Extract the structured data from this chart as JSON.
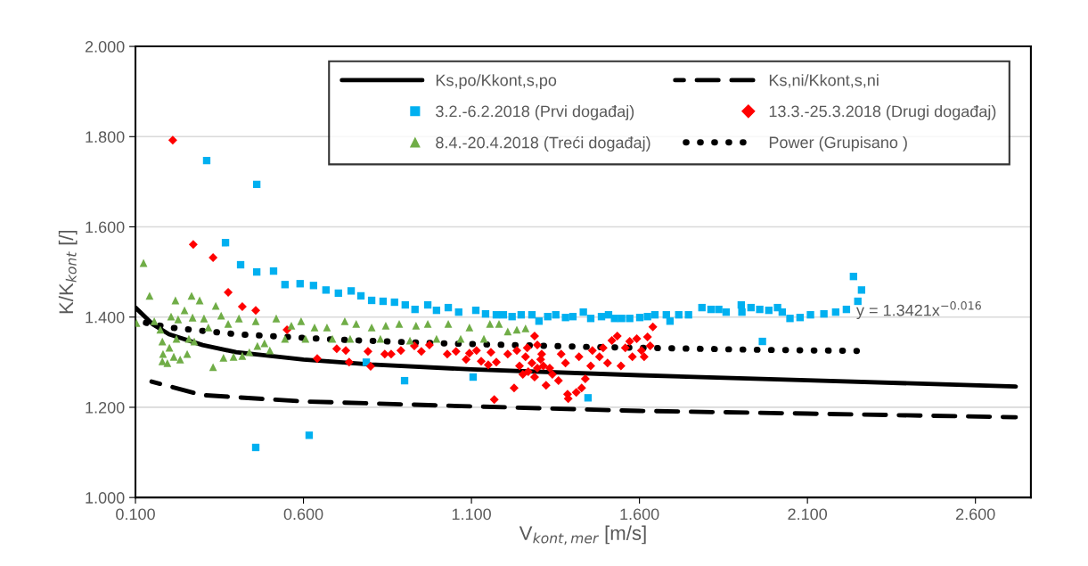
{
  "chart_data": {
    "type": "scatter",
    "xlabel": "V$_{kont,mer}$ [m/s]",
    "ylabel": "K/K$_{kont}$ [/]",
    "annotations": [
      "y = 1.3421x$^{−0.016}$"
    ],
    "xlim": [
      0.1,
      2.765
    ],
    "xticks": [
      {
        "value": 0.1,
        "label": "0.100"
      },
      {
        "value": 0.6,
        "label": "0.600"
      },
      {
        "value": 1.1,
        "label": "1.100"
      },
      {
        "value": 1.6,
        "label": "1.600"
      },
      {
        "value": 2.1,
        "label": "2.100"
      },
      {
        "value": 2.6,
        "label": "2.600"
      }
    ],
    "ylim": [
      1.0,
      2.0
    ],
    "yticks": [
      {
        "value": 1.0,
        "label": "1.000"
      },
      {
        "value": 1.2,
        "label": "1.200"
      },
      {
        "value": 1.4,
        "label": "1.400"
      },
      {
        "value": 1.6,
        "label": "1.600"
      },
      {
        "value": 1.8,
        "label": "1.800"
      },
      {
        "value": 2.0,
        "label": "2.000"
      }
    ],
    "grid": "y",
    "legend": "top right",
    "series": [
      {
        "name": "Ks,po/Kkont,s,po",
        "type": "line",
        "color": "#000000",
        "line_style": "solid",
        "marker": "none",
        "x": [
          0.1,
          0.15,
          0.2,
          0.3,
          0.4,
          0.6,
          0.8,
          1.1,
          1.6,
          2.1,
          2.72
        ],
        "values": [
          1.421,
          1.385,
          1.362,
          1.338,
          1.322,
          1.306,
          1.295,
          1.284,
          1.271,
          1.26,
          1.246
        ]
      },
      {
        "name": "Ks,ni/Kkont,s,ni",
        "type": "line",
        "color": "#000000",
        "line_style": "dashed",
        "marker": "none",
        "x": [
          0.148,
          0.3,
          0.6,
          1.1,
          1.6,
          2.1,
          2.72
        ],
        "values": [
          1.257,
          1.227,
          1.213,
          1.202,
          1.192,
          1.186,
          1.178
        ]
      },
      {
        "name": "3.2.-6.2.2018 (Prvi događaj)",
        "color": "#00b0f0",
        "marker": "square",
        "x": [
          0.312,
          0.461,
          0.368,
          0.413,
          0.461,
          0.511,
          0.545,
          0.59,
          0.63,
          0.667,
          0.704,
          0.742,
          0.771,
          0.803,
          0.837,
          0.871,
          0.903,
          0.932,
          0.97,
          0.996,
          1.031,
          1.062,
          1.113,
          1.142,
          1.174,
          1.195,
          1.221,
          1.248,
          1.28,
          1.301,
          1.327,
          1.351,
          1.38,
          1.402,
          1.433,
          1.455,
          1.487,
          1.508,
          1.526,
          1.547,
          1.571,
          1.601,
          1.624,
          1.646,
          1.68,
          1.691,
          1.717,
          1.746,
          1.786,
          1.813,
          1.836,
          1.858,
          1.903,
          1.905,
          1.932,
          1.958,
          1.985,
          2.011,
          2.025,
          2.048,
          2.078,
          2.109,
          2.149,
          2.184,
          2.216,
          2.237,
          2.25,
          2.261,
          1.447,
          1.966,
          0.787,
          0.901,
          1.105,
          0.458,
          0.617
        ],
        "values": [
          1.747,
          1.694,
          1.565,
          1.516,
          1.5,
          1.502,
          1.472,
          1.474,
          1.47,
          1.46,
          1.453,
          1.458,
          1.447,
          1.437,
          1.435,
          1.433,
          1.427,
          1.417,
          1.427,
          1.415,
          1.421,
          1.411,
          1.415,
          1.407,
          1.405,
          1.405,
          1.401,
          1.405,
          1.405,
          1.391,
          1.401,
          1.405,
          1.399,
          1.401,
          1.411,
          1.397,
          1.401,
          1.405,
          1.397,
          1.397,
          1.397,
          1.399,
          1.401,
          1.405,
          1.405,
          1.391,
          1.405,
          1.405,
          1.421,
          1.417,
          1.417,
          1.411,
          1.427,
          1.411,
          1.421,
          1.417,
          1.415,
          1.421,
          1.411,
          1.397,
          1.399,
          1.405,
          1.407,
          1.411,
          1.417,
          1.49,
          1.435,
          1.46,
          1.221,
          1.346,
          1.3,
          1.259,
          1.267,
          1.111,
          1.138
        ]
      },
      {
        "name": "13.3.-25.3.2018 (Drugi događaj)",
        "color": "#ff0000",
        "marker": "diamond",
        "x": [
          0.211,
          0.272,
          0.331,
          0.376,
          0.418,
          0.458,
          0.551,
          0.641,
          0.699,
          0.726,
          0.736,
          0.792,
          0.8,
          0.842,
          0.861,
          0.89,
          0.93,
          0.951,
          0.975,
          1.028,
          1.054,
          1.084,
          1.094,
          1.115,
          1.129,
          1.15,
          1.158,
          1.168,
          1.174,
          1.208,
          1.227,
          1.322,
          1.359,
          1.367,
          1.38,
          1.386,
          1.388,
          1.412,
          1.42,
          1.428,
          1.439,
          1.455,
          1.46,
          1.481,
          1.492,
          1.505,
          1.518,
          1.534,
          1.545,
          1.558,
          1.571,
          1.579,
          1.592,
          1.606,
          1.614,
          1.624,
          1.632,
          1.64,
          1.288,
          1.296,
          1.261,
          1.243,
          1.28,
          1.306,
          1.269,
          1.296,
          1.314,
          1.253,
          1.288,
          1.333,
          1.341,
          1.235,
          1.266,
          1.309
        ],
        "values": [
          1.792,
          1.561,
          1.532,
          1.455,
          1.423,
          1.415,
          1.372,
          1.308,
          1.33,
          1.326,
          1.3,
          1.324,
          1.291,
          1.318,
          1.318,
          1.326,
          1.336,
          1.324,
          1.338,
          1.318,
          1.324,
          1.306,
          1.32,
          1.326,
          1.302,
          1.294,
          1.322,
          1.217,
          1.3,
          1.318,
          1.243,
          1.249,
          1.259,
          1.318,
          1.298,
          1.229,
          1.219,
          1.233,
          1.312,
          1.243,
          1.263,
          1.292,
          1.326,
          1.312,
          1.332,
          1.298,
          1.348,
          1.358,
          1.292,
          1.332,
          1.346,
          1.312,
          1.352,
          1.326,
          1.312,
          1.356,
          1.336,
          1.378,
          1.358,
          1.338,
          1.312,
          1.292,
          1.298,
          1.306,
          1.279,
          1.287,
          1.292,
          1.273,
          1.267,
          1.287,
          1.273,
          1.326,
          1.332,
          1.318
        ]
      },
      {
        "name": "8.4.-20.4.2018 (Treći događaj)",
        "color": "#70ad47",
        "marker": "triangle",
        "x": [
          0.103,
          0.124,
          0.142,
          0.156,
          0.174,
          0.18,
          0.182,
          0.18,
          0.195,
          0.201,
          0.206,
          0.219,
          0.227,
          0.222,
          0.214,
          0.233,
          0.246,
          0.254,
          0.259,
          0.267,
          0.27,
          0.275,
          0.291,
          0.304,
          0.317,
          0.331,
          0.339,
          0.355,
          0.362,
          0.376,
          0.392,
          0.408,
          0.418,
          0.439,
          0.458,
          0.463,
          0.484,
          0.5,
          0.519,
          0.545,
          0.564,
          0.593,
          0.606,
          0.633,
          0.67,
          0.686,
          0.723,
          0.739,
          0.757,
          0.803,
          0.829,
          0.845,
          0.885,
          0.917,
          0.935,
          0.97,
          0.996,
          1.031,
          1.068,
          1.094,
          1.137,
          1.155,
          1.182,
          1.208,
          1.235,
          1.261
        ],
        "values": [
          1.387,
          1.52,
          1.447,
          1.391,
          1.372,
          1.346,
          1.318,
          1.302,
          1.298,
          1.332,
          1.401,
          1.437,
          1.395,
          1.352,
          1.312,
          1.306,
          1.415,
          1.318,
          1.352,
          1.447,
          1.399,
          1.346,
          1.437,
          1.397,
          1.377,
          1.289,
          1.425,
          1.403,
          1.31,
          1.385,
          1.312,
          1.397,
          1.314,
          1.322,
          1.391,
          1.336,
          1.342,
          1.326,
          1.397,
          1.352,
          1.381,
          1.391,
          1.352,
          1.377,
          1.377,
          1.352,
          1.391,
          1.352,
          1.385,
          1.377,
          1.352,
          1.381,
          1.385,
          1.348,
          1.381,
          1.385,
          1.352,
          1.385,
          1.352,
          1.377,
          1.352,
          1.385,
          1.385,
          1.368,
          1.372,
          1.375
        ]
      },
      {
        "name": "Power (Grupisano )",
        "type": "line",
        "color": "#000000",
        "line_style": "dotted",
        "marker": "none",
        "x": [
          0.1,
          0.2,
          0.4,
          0.7,
          1.0,
          1.5,
          2.0,
          2.247
        ],
        "values": [
          1.392,
          1.377,
          1.362,
          1.35,
          1.342,
          1.333,
          1.327,
          1.325
        ]
      }
    ]
  }
}
